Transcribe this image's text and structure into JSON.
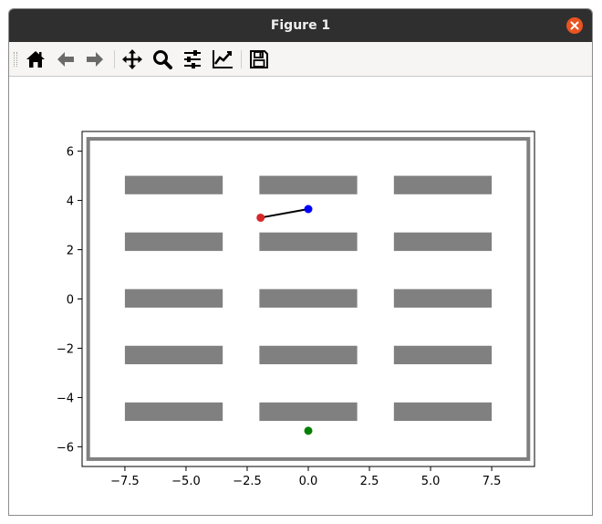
{
  "window": {
    "title": "Figure 1"
  },
  "toolbar": {
    "buttons": [
      {
        "name": "home-icon"
      },
      {
        "name": "back-arrow-icon"
      },
      {
        "name": "forward-arrow-icon"
      },
      {
        "name": "pan-icon"
      },
      {
        "name": "zoom-icon"
      },
      {
        "name": "configure-subplots-icon"
      },
      {
        "name": "edit-axes-icon"
      },
      {
        "name": "save-icon"
      }
    ]
  },
  "chart_data": {
    "type": "scatter",
    "xlim": [
      -9.25,
      9.25
    ],
    "ylim": [
      -6.8,
      6.8
    ],
    "x_ticks": [
      -7.5,
      -5.0,
      -2.5,
      0.0,
      2.5,
      5.0,
      7.5
    ],
    "x_tick_labels": [
      "−7.5",
      "−5.0",
      "−2.5",
      "0.0",
      "2.5",
      "5.0",
      "7.5"
    ],
    "y_ticks": [
      -6,
      -4,
      -2,
      0,
      2,
      4,
      6
    ],
    "y_tick_labels": [
      "−6",
      "−4",
      "−2",
      "0",
      "2",
      "4",
      "6"
    ],
    "boundary": {
      "x": [
        -9,
        9
      ],
      "y": [
        -6.5,
        6.5
      ],
      "color": "#808080"
    },
    "obstacles": {
      "color": "#808080",
      "rects": [
        [
          -7.5,
          -3.5,
          4.25,
          5.0
        ],
        [
          -2.0,
          2.0,
          4.25,
          5.0
        ],
        [
          3.5,
          7.5,
          4.25,
          5.0
        ],
        [
          -7.5,
          -3.5,
          1.95,
          2.7
        ],
        [
          -2.0,
          2.0,
          1.95,
          2.7
        ],
        [
          3.5,
          7.5,
          1.95,
          2.7
        ],
        [
          -7.5,
          -3.5,
          -0.35,
          0.4
        ],
        [
          -2.0,
          2.0,
          -0.35,
          0.4
        ],
        [
          3.5,
          7.5,
          -0.35,
          0.4
        ],
        [
          -7.5,
          -3.5,
          -2.65,
          -1.9
        ],
        [
          -2.0,
          2.0,
          -2.65,
          -1.9
        ],
        [
          3.5,
          7.5,
          -2.65,
          -1.9
        ],
        [
          -7.5,
          -3.5,
          -4.95,
          -4.2
        ],
        [
          -2.0,
          2.0,
          -4.95,
          -4.2
        ],
        [
          3.5,
          7.5,
          -4.95,
          -4.2
        ]
      ]
    },
    "path": {
      "x": [
        -1.95,
        0.0
      ],
      "y": [
        3.3,
        3.65
      ],
      "color": "#000000"
    },
    "points": [
      {
        "x": -1.95,
        "y": 3.3,
        "color": "#d62728"
      },
      {
        "x": 0.0,
        "y": 3.65,
        "color": "#0000ff"
      },
      {
        "x": 0.0,
        "y": -5.35,
        "color": "#008000"
      }
    ]
  }
}
